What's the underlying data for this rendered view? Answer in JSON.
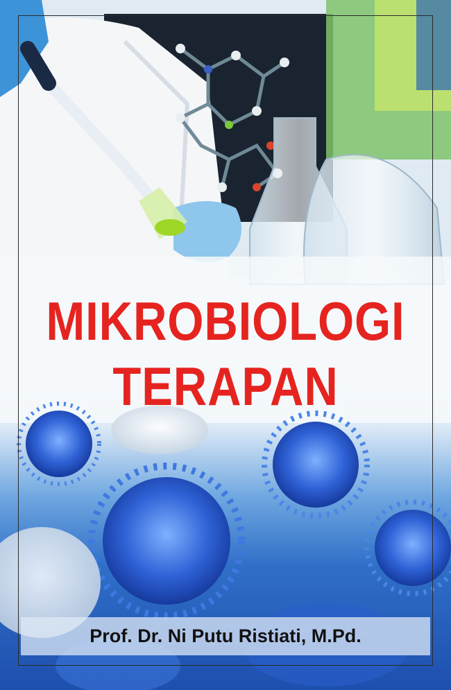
{
  "book": {
    "title_line_1": "MIKROBIOLOGI",
    "title_line_2": "TERAPAN",
    "author": "Prof. Dr. Ni Putu Ristiati, M.Pd."
  },
  "colors": {
    "title": "#e52420",
    "author": "#111111",
    "virus_blue": "#2f62d6",
    "background_top": "#9fc8e8",
    "background_bottom": "#1e4fae"
  },
  "icons": [
    "lab-scientist-photo",
    "molecule-model",
    "glass-flask",
    "virus-particle"
  ]
}
